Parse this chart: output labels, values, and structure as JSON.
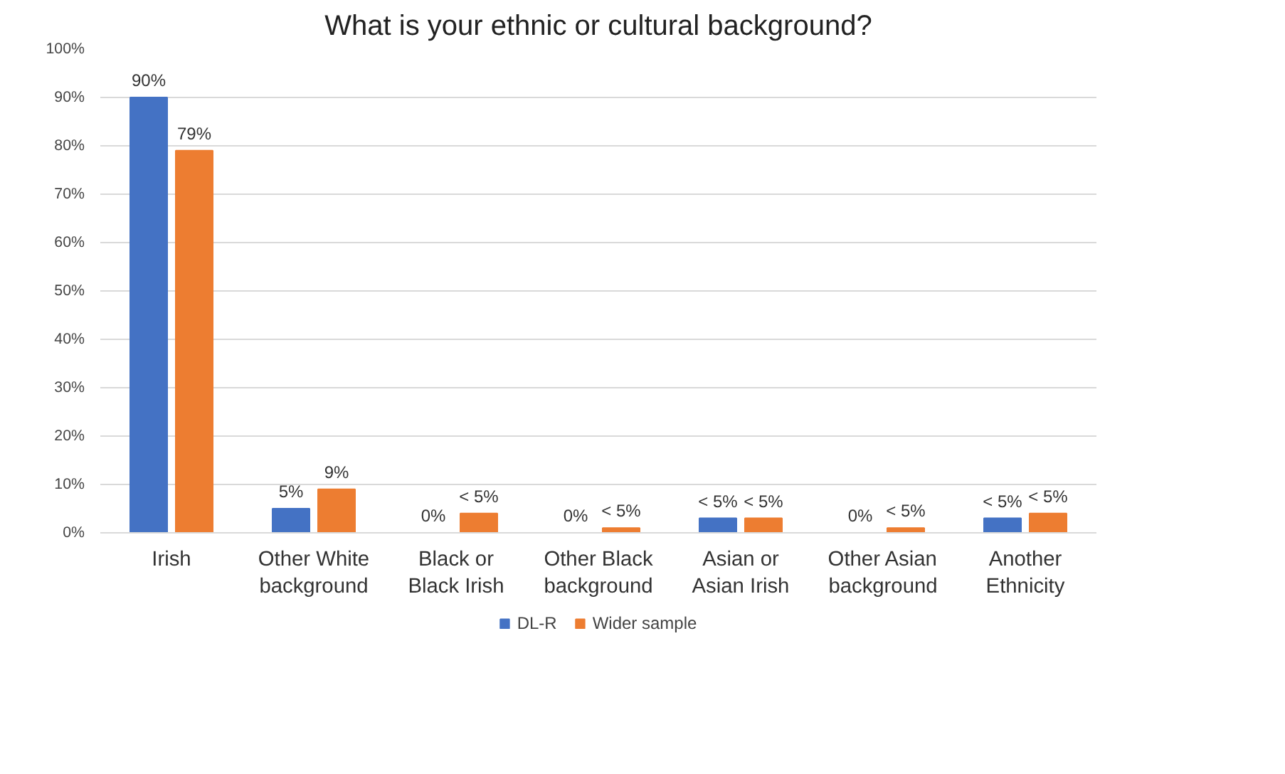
{
  "chart_data": {
    "type": "bar",
    "title": "What is your ethnic or cultural background?",
    "categories": [
      "Irish",
      "Other White\nbackground",
      "Black or\nBlack Irish",
      "Other Black\nbackground",
      "Asian or\nAsian Irish",
      "Other Asian\nbackground",
      "Another\nEthnicity"
    ],
    "series": [
      {
        "name": "DL-R",
        "color": "#4472c4",
        "values": [
          90,
          5,
          0,
          0,
          3,
          0,
          3
        ],
        "value_labels": [
          "90%",
          "5%",
          "0%",
          "0%",
          "< 5%",
          "0%",
          "< 5%"
        ]
      },
      {
        "name": "Wider sample",
        "color": "#ed7d31",
        "values": [
          79,
          9,
          4,
          1,
          3,
          1,
          4
        ],
        "value_labels": [
          "79%",
          "9%",
          "< 5%",
          "< 5%",
          "< 5%",
          "< 5%",
          "< 5%"
        ]
      }
    ],
    "ylim": [
      0,
      100
    ],
    "yticks": [
      {
        "value": 0,
        "label": "0%"
      },
      {
        "value": 10,
        "label": "10%"
      },
      {
        "value": 20,
        "label": "20%"
      },
      {
        "value": 30,
        "label": "30%"
      },
      {
        "value": 40,
        "label": "40%"
      },
      {
        "value": 50,
        "label": "50%"
      },
      {
        "value": 60,
        "label": "60%"
      },
      {
        "value": 70,
        "label": "70%"
      },
      {
        "value": 80,
        "label": "80%"
      },
      {
        "value": 90,
        "label": "90%"
      },
      {
        "value": 100,
        "label": "100%"
      }
    ],
    "grid": "y",
    "legend": "bottom"
  }
}
